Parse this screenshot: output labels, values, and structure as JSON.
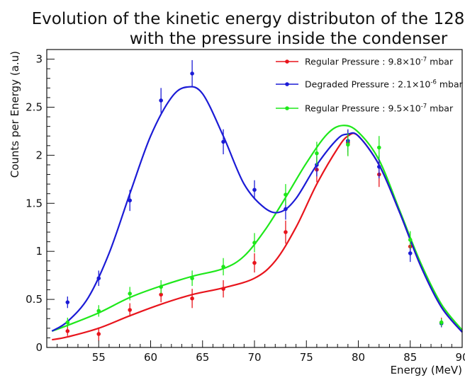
{
  "chart_data": {
    "type": "scatter",
    "title_lines": [
      "Evolution of the kinetic energy distributon of the 128",
      "with the pressure inside the condenser"
    ],
    "xlabel": "Energy (MeV)",
    "ylabel": "Counts per Energy (a.u)",
    "xlim": [
      50,
      90
    ],
    "ylim": [
      0,
      3.1
    ],
    "x_ticks": [
      55,
      60,
      65,
      70,
      75,
      80,
      85,
      90
    ],
    "y_ticks": [
      0,
      0.5,
      1,
      1.5,
      2,
      2.5,
      3
    ],
    "x_tick_labels": [
      "55",
      "60",
      "65",
      "70",
      "75",
      "80",
      "85",
      "90"
    ],
    "y_tick_labels": [
      "0",
      "0.5",
      "1",
      "1.5",
      "2",
      "2.5",
      "3"
    ],
    "grid": false,
    "legend_position": "top-right",
    "series": [
      {
        "legend": {
          "prefix": "Regular Pressure : 9.8×10",
          "exp": "-7",
          "suffix": " mbar"
        },
        "color": "#e8141c",
        "points": [
          {
            "x": 52,
            "y": 0.17,
            "err": 0.05
          },
          {
            "x": 55,
            "y": 0.14,
            "err": 0.07
          },
          {
            "x": 58,
            "y": 0.39,
            "err": 0.07
          },
          {
            "x": 61,
            "y": 0.55,
            "err": 0.08
          },
          {
            "x": 64,
            "y": 0.51,
            "err": 0.1
          },
          {
            "x": 67,
            "y": 0.61,
            "err": 0.09
          },
          {
            "x": 70,
            "y": 0.88,
            "err": 0.1
          },
          {
            "x": 73,
            "y": 1.2,
            "err": 0.12
          },
          {
            "x": 76,
            "y": 1.85,
            "err": 0.13
          },
          {
            "x": 79,
            "y": 2.13,
            "err": 0.13
          },
          {
            "x": 82,
            "y": 1.8,
            "err": 0.13
          },
          {
            "x": 85,
            "y": 1.05,
            "err": 0.1
          },
          {
            "x": 88,
            "y": 0.26,
            "err": 0.05
          }
        ],
        "fit": [
          [
            50.5,
            0.08
          ],
          [
            52,
            0.11
          ],
          [
            55,
            0.2
          ],
          [
            58,
            0.33
          ],
          [
            61,
            0.45
          ],
          [
            64,
            0.55
          ],
          [
            67,
            0.62
          ],
          [
            70,
            0.72
          ],
          [
            72,
            0.9
          ],
          [
            74,
            1.25
          ],
          [
            76,
            1.7
          ],
          [
            78,
            2.07
          ],
          [
            79,
            2.2
          ],
          [
            80,
            2.2
          ],
          [
            82,
            1.9
          ],
          [
            84,
            1.4
          ],
          [
            86,
            0.85
          ],
          [
            88,
            0.42
          ],
          [
            90,
            0.16
          ]
        ]
      },
      {
        "legend": {
          "prefix": "Degraded Pressure : 2.1×10",
          "exp": "-6",
          "suffix": " mbar"
        },
        "color": "#1b1bd6",
        "points": [
          {
            "x": 52,
            "y": 0.47,
            "err": 0.06
          },
          {
            "x": 55,
            "y": 0.72,
            "err": 0.08
          },
          {
            "x": 58,
            "y": 1.53,
            "err": 0.11
          },
          {
            "x": 61,
            "y": 2.57,
            "err": 0.13
          },
          {
            "x": 64,
            "y": 2.85,
            "err": 0.14
          },
          {
            "x": 67,
            "y": 2.14,
            "err": 0.13
          },
          {
            "x": 70,
            "y": 1.64,
            "err": 0.1
          },
          {
            "x": 73,
            "y": 1.44,
            "err": 0.11
          },
          {
            "x": 76,
            "y": 1.9,
            "err": 0.12
          },
          {
            "x": 79,
            "y": 2.15,
            "err": 0.12
          },
          {
            "x": 82,
            "y": 1.88,
            "err": 0.12
          },
          {
            "x": 85,
            "y": 0.98,
            "err": 0.09
          },
          {
            "x": 88,
            "y": 0.25,
            "err": 0.04
          }
        ],
        "fit": [
          [
            50.5,
            0.17
          ],
          [
            52,
            0.27
          ],
          [
            54,
            0.52
          ],
          [
            56,
            0.98
          ],
          [
            58,
            1.6
          ],
          [
            60,
            2.2
          ],
          [
            62,
            2.6
          ],
          [
            63.5,
            2.71
          ],
          [
            65,
            2.64
          ],
          [
            67,
            2.2
          ],
          [
            69,
            1.7
          ],
          [
            71,
            1.45
          ],
          [
            72.5,
            1.41
          ],
          [
            74,
            1.55
          ],
          [
            76,
            1.9
          ],
          [
            78,
            2.17
          ],
          [
            79,
            2.22
          ],
          [
            80,
            2.2
          ],
          [
            82,
            1.9
          ],
          [
            84,
            1.4
          ],
          [
            86,
            0.85
          ],
          [
            88,
            0.42
          ],
          [
            90,
            0.16
          ]
        ]
      },
      {
        "legend": {
          "prefix": "Regular Pressure : 9.5×10",
          "exp": "-7",
          "suffix": " mbar"
        },
        "color": "#1ee81a",
        "points": [
          {
            "x": 52,
            "y": 0.26,
            "err": 0.05
          },
          {
            "x": 55,
            "y": 0.38,
            "err": 0.06
          },
          {
            "x": 58,
            "y": 0.56,
            "err": 0.07
          },
          {
            "x": 61,
            "y": 0.63,
            "err": 0.07
          },
          {
            "x": 64,
            "y": 0.72,
            "err": 0.08
          },
          {
            "x": 67,
            "y": 0.84,
            "err": 0.09
          },
          {
            "x": 70,
            "y": 1.09,
            "err": 0.1
          },
          {
            "x": 73,
            "y": 1.59,
            "err": 0.11
          },
          {
            "x": 76,
            "y": 2.02,
            "err": 0.12
          },
          {
            "x": 79,
            "y": 2.11,
            "err": 0.12
          },
          {
            "x": 82,
            "y": 2.08,
            "err": 0.12
          },
          {
            "x": 85,
            "y": 1.12,
            "err": 0.09
          },
          {
            "x": 88,
            "y": 0.26,
            "err": 0.04
          }
        ],
        "fit": [
          [
            50.5,
            0.17
          ],
          [
            52,
            0.23
          ],
          [
            55,
            0.36
          ],
          [
            58,
            0.52
          ],
          [
            61,
            0.64
          ],
          [
            64,
            0.74
          ],
          [
            67,
            0.82
          ],
          [
            69,
            0.95
          ],
          [
            71,
            1.22
          ],
          [
            73,
            1.56
          ],
          [
            75,
            1.92
          ],
          [
            77,
            2.22
          ],
          [
            78.5,
            2.31
          ],
          [
            80,
            2.24
          ],
          [
            82,
            1.95
          ],
          [
            84,
            1.42
          ],
          [
            86,
            0.88
          ],
          [
            88,
            0.45
          ],
          [
            90,
            0.18
          ]
        ]
      }
    ]
  }
}
